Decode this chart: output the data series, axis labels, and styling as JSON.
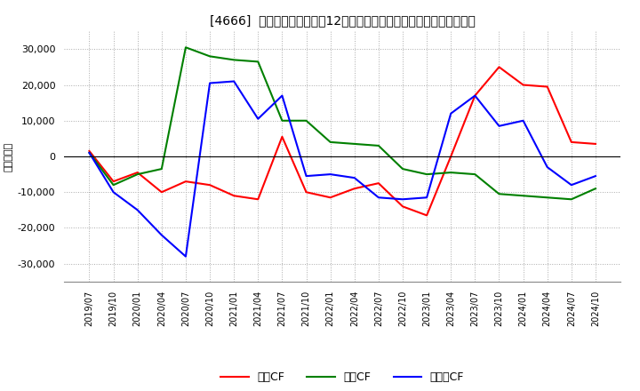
{
  "title": "[4666]  キャッシュフローの12か月移動合計の対前年同期増減額の推移",
  "ylabel": "（百万円）",
  "x_labels": [
    "2019/07",
    "2019/10",
    "2020/01",
    "2020/04",
    "2020/07",
    "2020/10",
    "2021/01",
    "2021/04",
    "2021/07",
    "2021/10",
    "2022/01",
    "2022/04",
    "2022/07",
    "2022/10",
    "2023/01",
    "2023/04",
    "2023/07",
    "2023/10",
    "2024/01",
    "2024/04",
    "2024/07",
    "2024/10"
  ],
  "operating_cf": [
    1500,
    -7000,
    -4500,
    -10000,
    -7000,
    -8000,
    -11000,
    -12000,
    5500,
    -10000,
    -11500,
    -9000,
    -7500,
    -14000,
    -16500,
    0,
    17000,
    25000,
    20000,
    19500,
    4000,
    3500
  ],
  "investing_cf": [
    1000,
    -8000,
    -5000,
    -3500,
    30500,
    28000,
    27000,
    26500,
    10000,
    10000,
    4000,
    3500,
    3000,
    -3500,
    -5000,
    -4500,
    -5000,
    -10500,
    -11000,
    -11500,
    -12000,
    -9000
  ],
  "free_cf": [
    1000,
    -10000,
    -15000,
    -22000,
    -28000,
    20500,
    21000,
    10500,
    17000,
    -5500,
    -5000,
    -6000,
    -11500,
    -12000,
    -11500,
    12000,
    17000,
    8500,
    10000,
    -3000,
    -8000,
    -5500
  ],
  "operating_color": "#ff0000",
  "investing_color": "#008000",
  "free_color": "#0000ff",
  "background_color": "#ffffff",
  "grid_color": "#aaaaaa",
  "ylim": [
    -35000,
    35000
  ],
  "yticks": [
    -30000,
    -20000,
    -10000,
    0,
    10000,
    20000,
    30000
  ],
  "legend_labels": [
    "営業CF",
    "投資CF",
    "フリーCF"
  ]
}
